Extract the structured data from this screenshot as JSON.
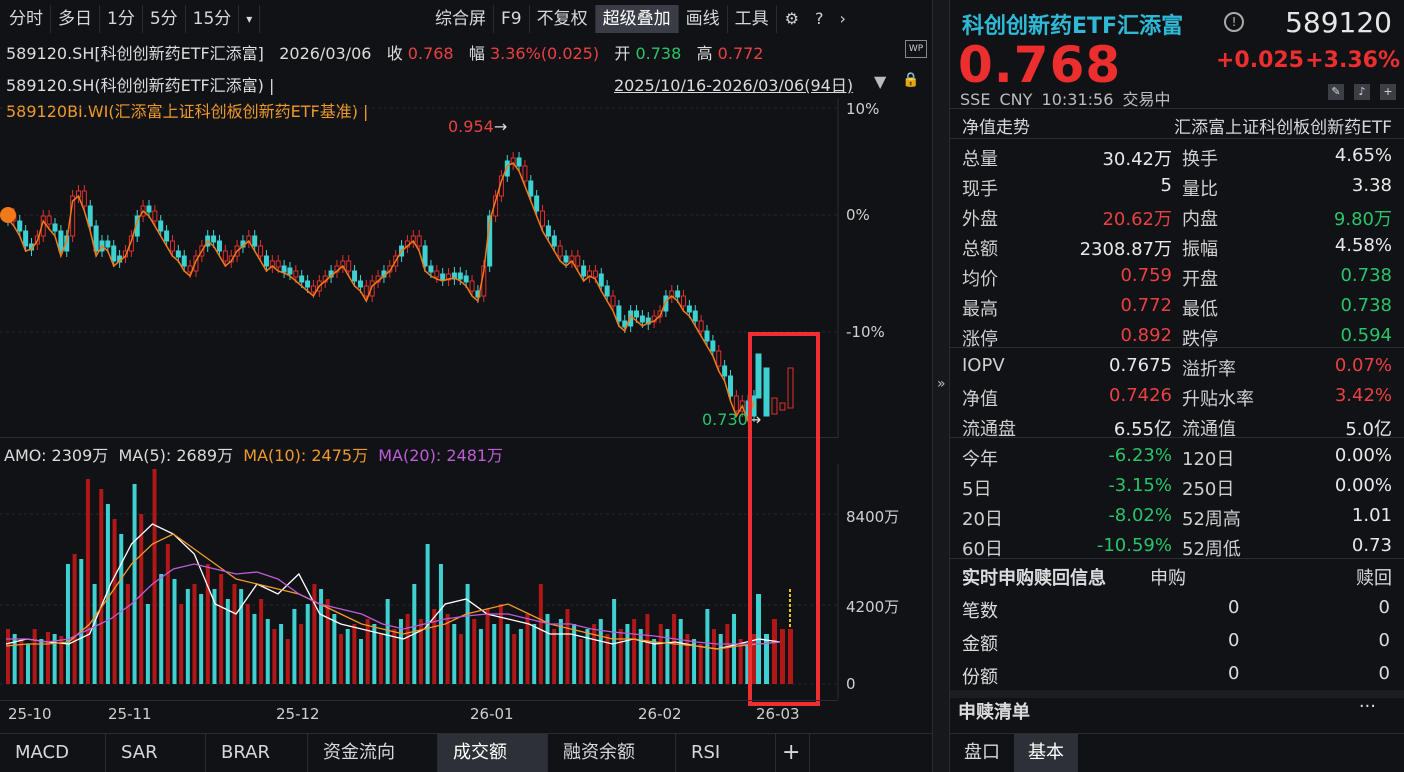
{
  "toolbar": {
    "period": [
      "分时",
      "多日",
      "1分",
      "5分",
      "15分"
    ],
    "dropdown": "▾",
    "tools": [
      "综合屏",
      "F9",
      "不复权",
      "超级叠加",
      "画线",
      "工具"
    ],
    "active_tool": "超级叠加"
  },
  "info": {
    "line1": {
      "name": "589120.SH[科创创新药ETF汇添富]",
      "date": "2026/03/06",
      "close_label": "收",
      "close": "0.768",
      "amp_label": "幅",
      "amp": "3.36%(0.025)",
      "open_label": "开",
      "open": "0.738",
      "high_label": "高",
      "high": "0.772"
    },
    "line2": {
      "name": "589120.SH(科创创新药ETF汇添富) |",
      "range": "2025/10/16-2026/03/06(94日)"
    },
    "line3": {
      "name": "589120BI.WI(汇添富上证科创板创新药ETF基准) |"
    }
  },
  "price_axis": [
    "10%",
    "0%",
    "-10%"
  ],
  "annotations": {
    "high": "0.954",
    "low": "0.730"
  },
  "volume": {
    "amo_label": "AMO:",
    "amo": "2309万",
    "ma5_label": "MA(5):",
    "ma5": "2689万",
    "ma10_label": "MA(10):",
    "ma10": "2475万",
    "ma20_label": "MA(20):",
    "ma20": "2481万",
    "axis": [
      "8400万",
      "4200万",
      "0"
    ]
  },
  "x_axis": [
    "25-10",
    "25-11",
    "25-12",
    "26-01",
    "26-02",
    "26-03"
  ],
  "tabs": [
    "MACD",
    "SAR",
    "BRAR",
    "资金流向",
    "成交额",
    "融资余额",
    "RSI"
  ],
  "active_tab": "成交额",
  "add_tab": "+",
  "quote": {
    "title": "科创创新药ETF汇添富",
    "code": "589120",
    "price": "0.768",
    "change": "+0.025",
    "pct": "+3.36%",
    "meta": "SSE  CNY  10:31:56  交易中",
    "nav_trend_label": "净值走势",
    "nav_trend_value": "汇添富上证科创板创新药ETF",
    "rows": [
      {
        "l1": "总量",
        "v1": "30.42万",
        "c1": "white",
        "l2": "换手",
        "v2": "4.65%",
        "c2": "white"
      },
      {
        "l1": "现手",
        "v1": "5",
        "c1": "white",
        "l2": "量比",
        "v2": "3.38",
        "c2": "white"
      },
      {
        "l1": "外盘",
        "v1": "20.62万",
        "c1": "red",
        "l2": "内盘",
        "v2": "9.80万",
        "c2": "green"
      },
      {
        "l1": "总额",
        "v1": "2308.87万",
        "c1": "white",
        "l2": "振幅",
        "v2": "4.58%",
        "c2": "white"
      },
      {
        "l1": "均价",
        "v1": "0.759",
        "c1": "red",
        "l2": "开盘",
        "v2": "0.738",
        "c2": "green"
      },
      {
        "l1": "最高",
        "v1": "0.772",
        "c1": "red",
        "l2": "最低",
        "v2": "0.738",
        "c2": "green"
      },
      {
        "l1": "涨停",
        "v1": "0.892",
        "c1": "red",
        "l2": "跌停",
        "v2": "0.594",
        "c2": "green"
      },
      {
        "l1": "IOPV",
        "v1": "0.7675",
        "c1": "white",
        "l2": "溢折率",
        "v2": "0.07%",
        "c2": "red"
      },
      {
        "l1": "净值",
        "v1": "0.7426",
        "c1": "red",
        "l2": "升贴水率",
        "v2": "3.42%",
        "c2": "red"
      },
      {
        "l1": "流通盘",
        "v1": "6.55亿",
        "c1": "white",
        "l2": "流通值",
        "v2": "5.0亿",
        "c2": "white"
      },
      {
        "l1": "今年",
        "v1": "-6.23%",
        "c1": "green",
        "l2": "120日",
        "v2": "0.00%",
        "c2": "white"
      },
      {
        "l1": "5日",
        "v1": "-3.15%",
        "c1": "green",
        "l2": "250日",
        "v2": "0.00%",
        "c2": "white"
      },
      {
        "l1": "20日",
        "v1": "-8.02%",
        "c1": "green",
        "l2": "52周高",
        "v2": "1.01",
        "c2": "white"
      },
      {
        "l1": "60日",
        "v1": "-10.59%",
        "c1": "green",
        "l2": "52周低",
        "v2": "0.73",
        "c2": "white"
      }
    ],
    "subscribe": {
      "title": "实时申购赎回信息",
      "col1": "申购",
      "col2": "赎回",
      "rows": [
        {
          "label": "笔数",
          "a": "0",
          "b": "0"
        },
        {
          "label": "金额",
          "a": "0",
          "b": "0"
        },
        {
          "label": "份额",
          "a": "0",
          "b": "0"
        }
      ]
    },
    "list_title": "申赎清单",
    "more": "···",
    "bottom_tabs": [
      "盘口",
      "基本"
    ],
    "active_bottom": "基本"
  },
  "collapse_arrow": "»",
  "chart_data": {
    "type": "candlestick",
    "x_labels": [
      "25-10",
      "25-11",
      "25-12",
      "26-01",
      "26-02",
      "26-03"
    ],
    "y_axis_pct": [
      10,
      0,
      -10
    ],
    "high": 0.954,
    "low": 0.73,
    "last_close": 0.768,
    "volume_axis": [
      "8400万",
      "4200万",
      "0"
    ]
  }
}
